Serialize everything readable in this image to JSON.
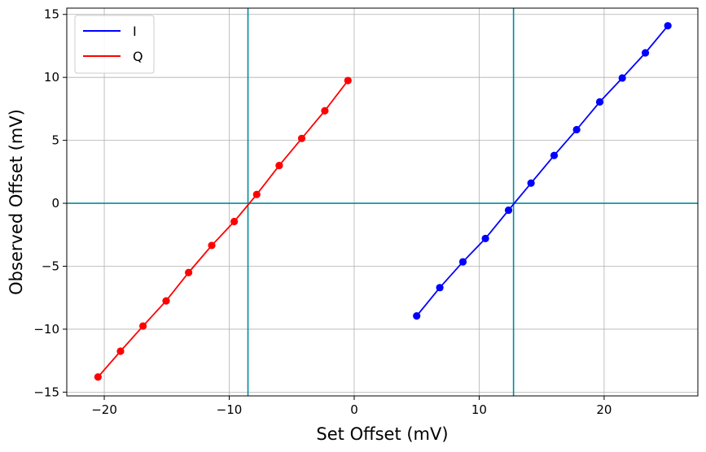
{
  "chart_data": {
    "type": "line",
    "title": "",
    "xlabel": "Set Offset (mV)",
    "ylabel": "Observed Offset (mV)",
    "xlim": [
      -23,
      27.5
    ],
    "ylim": [
      -15.3,
      15.5
    ],
    "xticks": [
      -20,
      -10,
      0,
      10,
      20
    ],
    "yticks": [
      -15,
      -10,
      -5,
      0,
      5,
      10,
      15
    ],
    "xtick_labels": [
      "−20",
      "−10",
      "0",
      "10",
      "20"
    ],
    "ytick_labels": [
      "−15",
      "−10",
      "−5",
      "0",
      "5",
      "10",
      "15"
    ],
    "grid": true,
    "legend_position": "top-left",
    "reference_lines": {
      "vertical": [
        -8.5,
        12.75
      ],
      "horizontal": [
        0
      ],
      "color": "#008b9b"
    },
    "series": [
      {
        "name": "I",
        "color": "#0000ff",
        "x": [
          5.0,
          6.85,
          8.7,
          10.5,
          12.35,
          14.15,
          16.0,
          17.8,
          19.65,
          21.45,
          23.3,
          25.1
        ],
        "y": [
          -8.95,
          -6.7,
          -4.65,
          -2.8,
          -0.55,
          1.6,
          3.8,
          5.85,
          8.05,
          9.95,
          11.95,
          14.1
        ]
      },
      {
        "name": "Q",
        "color": "#ff0000",
        "x": [
          -20.5,
          -18.7,
          -16.9,
          -15.05,
          -13.25,
          -11.4,
          -9.6,
          -7.8,
          -6.0,
          -4.2,
          -2.35,
          -0.5
        ],
        "y": [
          -13.8,
          -11.75,
          -9.75,
          -7.75,
          -5.5,
          -3.35,
          -1.45,
          0.7,
          3.0,
          5.15,
          7.35,
          9.75
        ]
      }
    ]
  }
}
